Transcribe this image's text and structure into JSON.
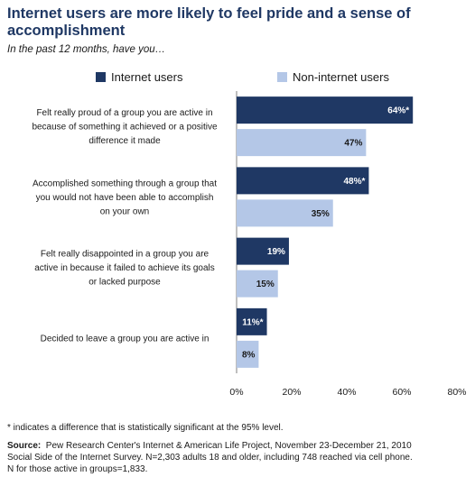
{
  "title": "Internet users are more likely to feel pride and a sense of accomplishment",
  "subtitle": "In the past 12 months, have you…",
  "footnote": "* indicates a difference that is statistically significant at the 95% level.",
  "source": {
    "label": "Source:",
    "line1": "Pew Research Center's Internet & American Life Project, November 23-December 21, 2010",
    "line2": "Social Side of the Internet Survey. N=2,303 adults 18 and older, including 748 reached via cell phone.",
    "line3": "N for those active in groups=1,833."
  },
  "colors": {
    "internet": "#1f3864",
    "non_internet": "#b4c7e7",
    "axis": "#7f7f7f"
  },
  "chart_data": {
    "type": "bar",
    "orientation": "horizontal",
    "categories": [
      [
        "Felt really proud of a group you are active in",
        "because of something it achieved or a positive",
        "difference it made"
      ],
      [
        "Accomplished something through a group that",
        "you would not have been able to accomplish",
        "on your own"
      ],
      [
        "Felt really disappointed in a group you are",
        "active in because it failed to achieve its goals",
        "or lacked purpose"
      ],
      [
        "Decided to leave a group you are active in"
      ]
    ],
    "series": [
      {
        "name": "Internet users",
        "values": [
          64,
          48,
          19,
          11
        ],
        "labels": [
          "64%*",
          "48%*",
          "19%",
          "11%*"
        ]
      },
      {
        "name": "Non-internet users",
        "values": [
          47,
          35,
          15,
          8
        ],
        "labels": [
          "47%",
          "35%",
          "15%",
          "8%"
        ]
      }
    ],
    "xlim": [
      0,
      80
    ],
    "xticks": [
      "0%",
      "20%",
      "40%",
      "60%",
      "80%"
    ],
    "legend": "top"
  }
}
